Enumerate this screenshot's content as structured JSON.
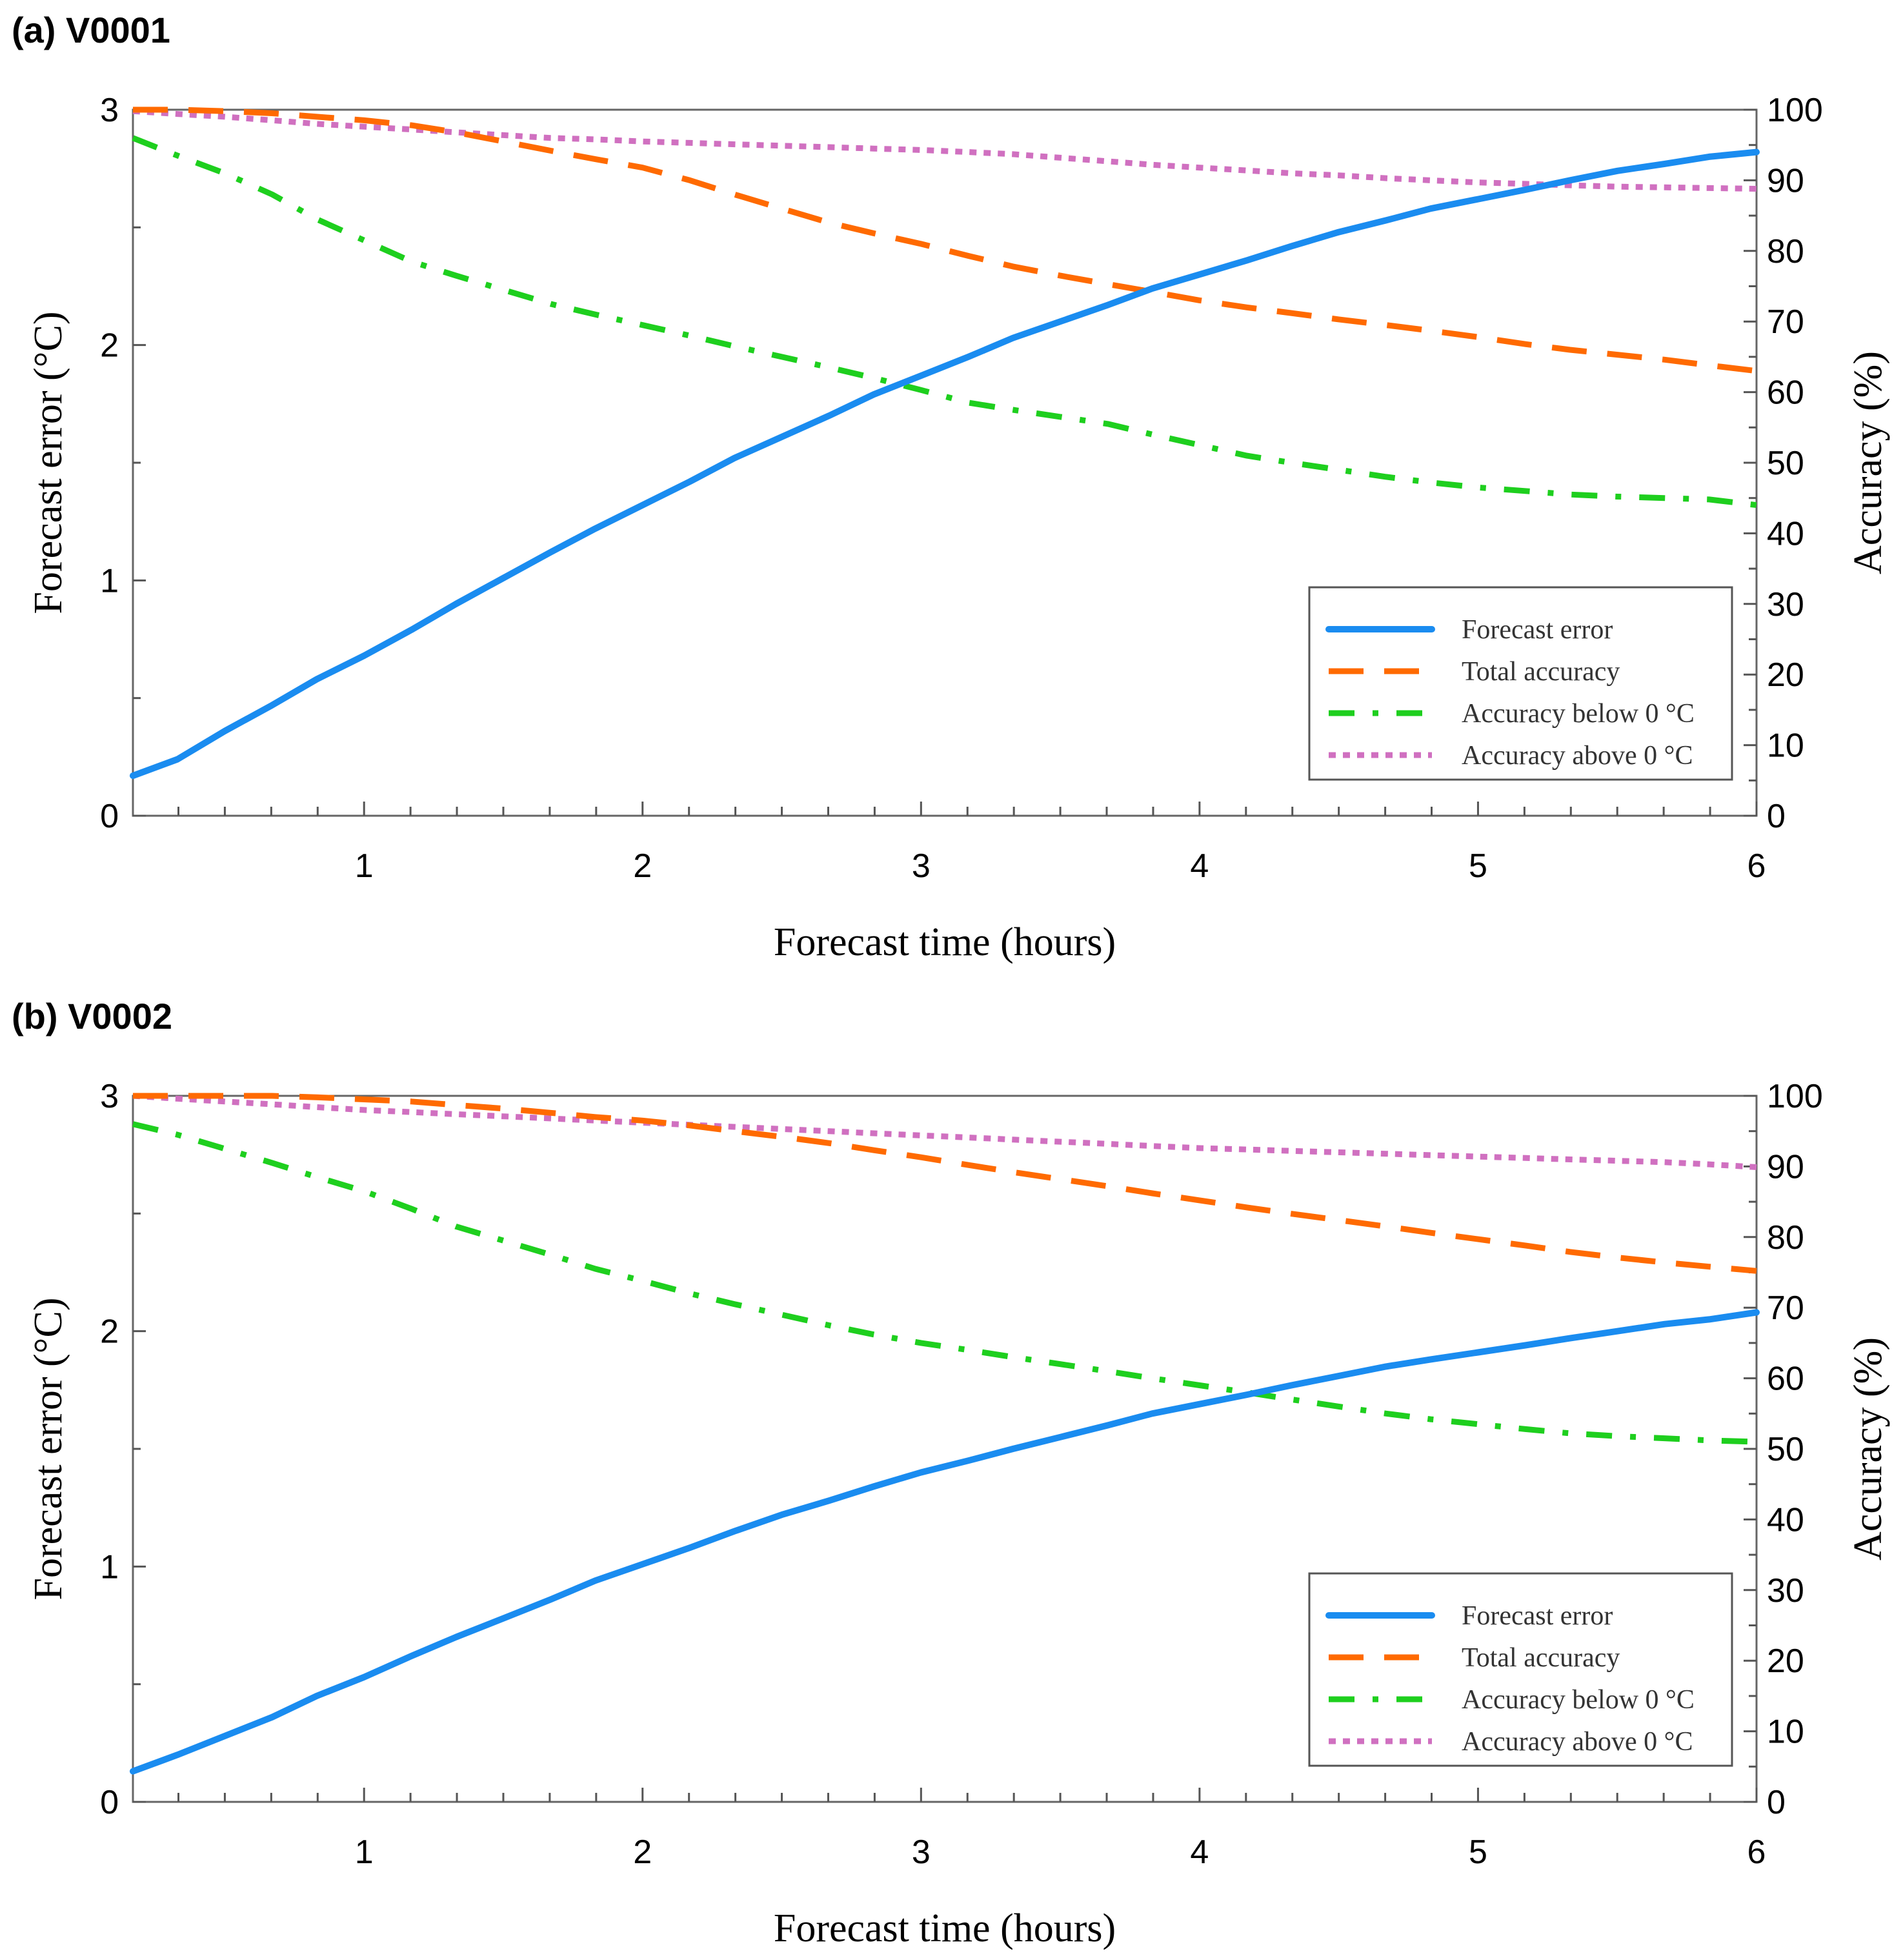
{
  "chart_data": [
    {
      "type": "line",
      "panel_label": "(a) V0001",
      "xlabel": "Forecast time (hours)",
      "ylabel_left": "Forecast error  (°C)",
      "ylabel_right": "Accuracy (%)",
      "xlim": [
        0.17,
        6
      ],
      "ylim_left": [
        0,
        3
      ],
      "ylim_right": [
        0,
        100
      ],
      "x_ticks": [
        "1",
        "2",
        "3",
        "4",
        "5",
        "6"
      ],
      "y_left_ticks": [
        "0",
        "1",
        "2",
        "3"
      ],
      "y_right_ticks": [
        "0",
        "10",
        "20",
        "30",
        "40",
        "50",
        "60",
        "70",
        "80",
        "90",
        "100"
      ],
      "legend_position": "lower-right",
      "colors": {
        "error": "#1a8cf0",
        "total": "#ff6a00",
        "below": "#1ecf1e",
        "above": "#d070c0"
      },
      "x": [
        0.17,
        0.33,
        0.5,
        0.67,
        0.83,
        1.0,
        1.17,
        1.33,
        1.5,
        1.67,
        1.83,
        2.0,
        2.17,
        2.33,
        2.5,
        2.67,
        2.83,
        3.0,
        3.17,
        3.33,
        3.5,
        3.67,
        3.83,
        4.0,
        4.17,
        4.33,
        4.5,
        4.67,
        4.83,
        5.0,
        5.17,
        5.33,
        5.5,
        5.67,
        5.83,
        6.0
      ],
      "series": [
        {
          "name": "Forecast error",
          "axis": "left",
          "style": "solid",
          "values": [
            0.17,
            0.24,
            0.36,
            0.47,
            0.58,
            0.68,
            0.79,
            0.9,
            1.01,
            1.12,
            1.22,
            1.32,
            1.42,
            1.52,
            1.61,
            1.7,
            1.79,
            1.87,
            1.95,
            2.03,
            2.1,
            2.17,
            2.24,
            2.3,
            2.36,
            2.42,
            2.48,
            2.53,
            2.58,
            2.62,
            2.66,
            2.7,
            2.74,
            2.77,
            2.8,
            2.82
          ]
        },
        {
          "name": "Total accuracy",
          "axis": "right",
          "style": "dashed",
          "values": [
            100,
            100,
            99.8,
            99.5,
            99,
            98.5,
            97.8,
            96.8,
            95.5,
            94.2,
            93,
            91.8,
            90,
            88,
            86,
            84,
            82.5,
            81,
            79.3,
            77.8,
            76.5,
            75.3,
            74.2,
            73,
            72,
            71.2,
            70.3,
            69.5,
            68.7,
            67.8,
            66.8,
            66,
            65.3,
            64.6,
            63.8,
            63
          ]
        },
        {
          "name": "Accuracy below 0 °C",
          "axis": "right",
          "style": "dashdot",
          "values": [
            96,
            93.5,
            91,
            88,
            84.5,
            81.5,
            78.5,
            76.5,
            74.5,
            72.5,
            71,
            69.5,
            68,
            66.5,
            65,
            63.5,
            62,
            60.3,
            58.5,
            57.5,
            56.5,
            55.5,
            54,
            52.5,
            51,
            50,
            49,
            48,
            47.2,
            46.5,
            46,
            45.5,
            45.2,
            45,
            44.8,
            44
          ]
        },
        {
          "name": "Accuracy above 0 °C",
          "axis": "right",
          "style": "dotted",
          "values": [
            99.8,
            99.4,
            99,
            98.5,
            98,
            97.6,
            97.2,
            96.8,
            96.4,
            96,
            95.8,
            95.5,
            95.3,
            95.1,
            94.9,
            94.7,
            94.5,
            94.3,
            94,
            93.7,
            93.2,
            92.7,
            92.2,
            91.8,
            91.4,
            91,
            90.7,
            90.3,
            90,
            89.7,
            89.5,
            89.3,
            89.1,
            89,
            88.9,
            88.8
          ]
        }
      ]
    },
    {
      "type": "line",
      "panel_label": "(b) V0002",
      "xlabel": "Forecast time (hours)",
      "ylabel_left": "Forecast error  (°C)",
      "ylabel_right": "Accuracy (%)",
      "xlim": [
        0.17,
        6
      ],
      "ylim_left": [
        0,
        3
      ],
      "ylim_right": [
        0,
        100
      ],
      "x_ticks": [
        "1",
        "2",
        "3",
        "4",
        "5",
        "6"
      ],
      "y_left_ticks": [
        "0",
        "1",
        "2",
        "3"
      ],
      "y_right_ticks": [
        "0",
        "10",
        "20",
        "30",
        "40",
        "50",
        "60",
        "70",
        "80",
        "90",
        "100"
      ],
      "legend_position": "lower-right",
      "colors": {
        "error": "#1a8cf0",
        "total": "#ff6a00",
        "below": "#1ecf1e",
        "above": "#d070c0"
      },
      "x": [
        0.17,
        0.33,
        0.5,
        0.67,
        0.83,
        1.0,
        1.17,
        1.33,
        1.5,
        1.67,
        1.83,
        2.0,
        2.17,
        2.33,
        2.5,
        2.67,
        2.83,
        3.0,
        3.17,
        3.33,
        3.5,
        3.67,
        3.83,
        4.0,
        4.17,
        4.33,
        4.5,
        4.67,
        4.83,
        5.0,
        5.17,
        5.33,
        5.5,
        5.67,
        5.83,
        6.0
      ],
      "series": [
        {
          "name": "Forecast error",
          "axis": "left",
          "style": "solid",
          "values": [
            0.13,
            0.2,
            0.28,
            0.36,
            0.45,
            0.53,
            0.62,
            0.7,
            0.78,
            0.86,
            0.94,
            1.01,
            1.08,
            1.15,
            1.22,
            1.28,
            1.34,
            1.4,
            1.45,
            1.5,
            1.55,
            1.6,
            1.65,
            1.69,
            1.73,
            1.77,
            1.81,
            1.85,
            1.88,
            1.91,
            1.94,
            1.97,
            2.0,
            2.03,
            2.05,
            2.08
          ]
        },
        {
          "name": "Total accuracy",
          "axis": "right",
          "style": "dashed",
          "values": [
            100,
            100,
            100,
            100,
            99.8,
            99.5,
            99.2,
            98.7,
            98.2,
            97.6,
            97,
            96.5,
            95.8,
            95,
            94.2,
            93.3,
            92.3,
            91.3,
            90.2,
            89.2,
            88.2,
            87.2,
            86.2,
            85.2,
            84.2,
            83.3,
            82.4,
            81.5,
            80.6,
            79.7,
            78.8,
            77.9,
            77.1,
            76.4,
            75.8,
            75.2
          ]
        },
        {
          "name": "Accuracy below 0 °C",
          "axis": "right",
          "style": "dashdot",
          "values": [
            96,
            94.5,
            92.5,
            90.5,
            88.5,
            86.5,
            84,
            81.5,
            79.5,
            77.5,
            75.5,
            73.8,
            72,
            70.5,
            69,
            67.5,
            66.2,
            65,
            64,
            63,
            62,
            61,
            60,
            59,
            58,
            57,
            56,
            55,
            54.2,
            53.5,
            52.8,
            52.2,
            51.8,
            51.5,
            51.2,
            51
          ]
        },
        {
          "name": "Accuracy above 0 °C",
          "axis": "right",
          "style": "dotted",
          "values": [
            100,
            99.6,
            99.2,
            98.8,
            98.4,
            98,
            97.7,
            97.4,
            97.1,
            96.8,
            96.5,
            96.2,
            95.9,
            95.6,
            95.3,
            95,
            94.7,
            94.4,
            94.1,
            93.8,
            93.5,
            93.2,
            92.9,
            92.6,
            92.4,
            92.2,
            92,
            91.8,
            91.6,
            91.4,
            91.2,
            91,
            90.8,
            90.6,
            90.3,
            89.9
          ]
        }
      ]
    }
  ]
}
